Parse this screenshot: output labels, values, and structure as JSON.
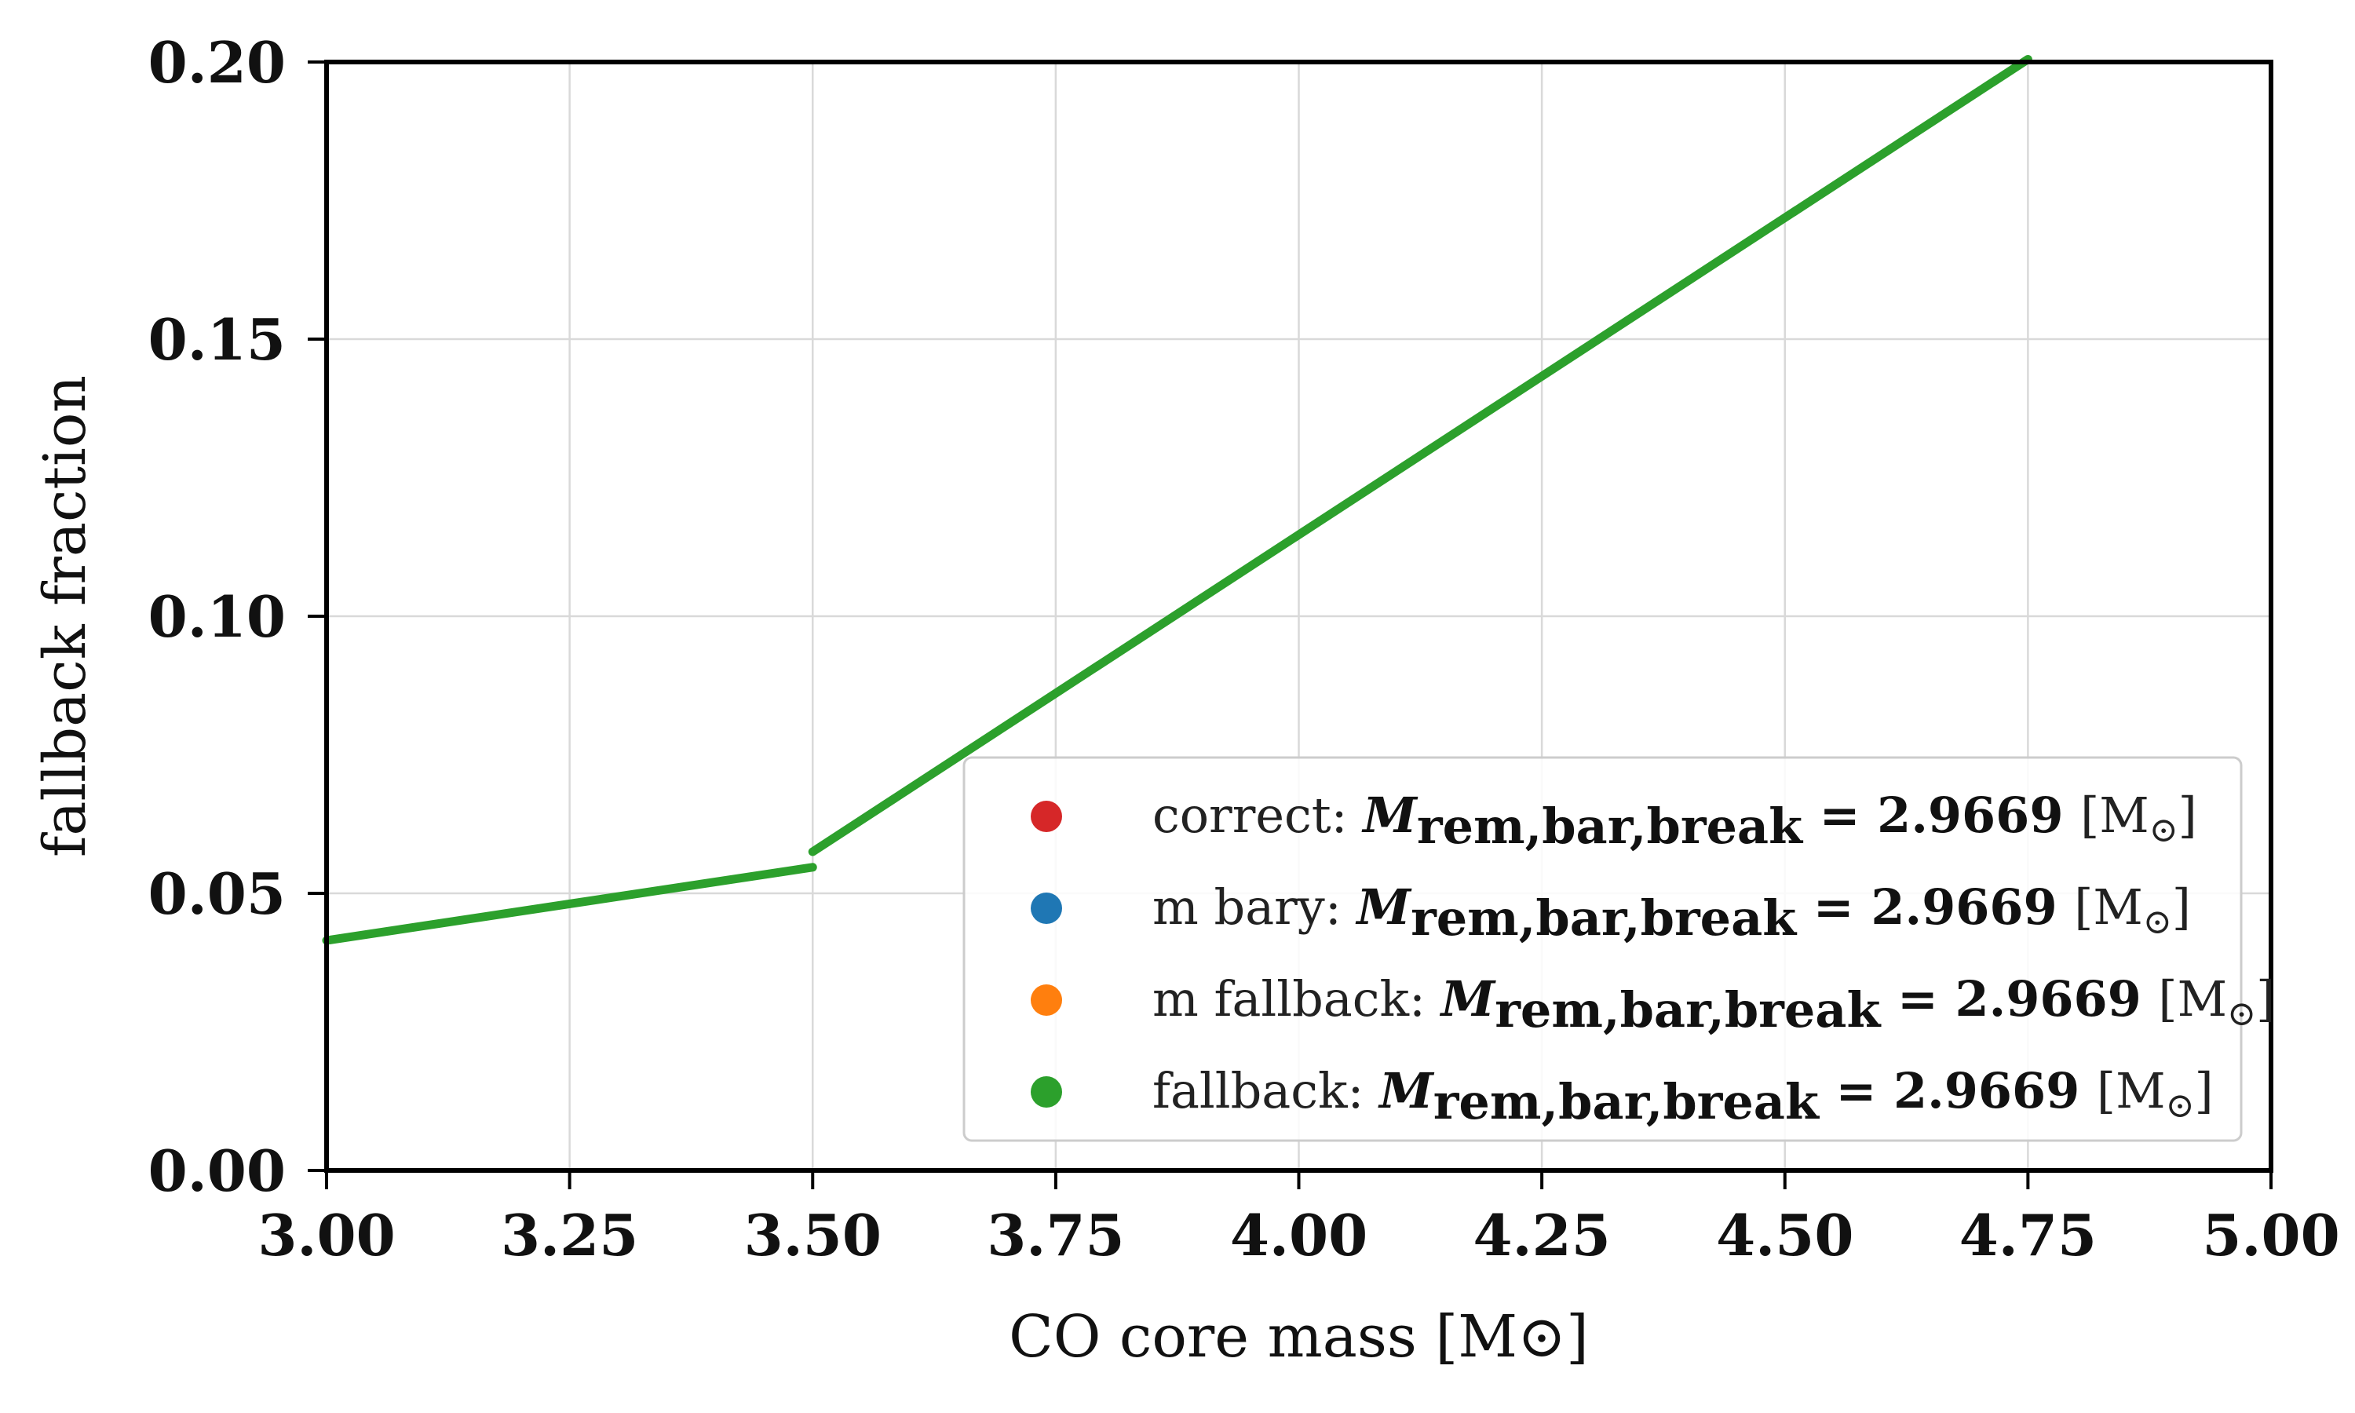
{
  "chart_data": {
    "type": "line",
    "xlabel": "CO core mass [M⊙]",
    "ylabel": "fallback fraction",
    "xlim": [
      3.0,
      5.0
    ],
    "ylim": [
      0.0,
      0.2
    ],
    "x_ticks": [
      "3.00",
      "3.25",
      "3.50",
      "3.75",
      "4.00",
      "4.25",
      "4.50",
      "4.75",
      "5.00"
    ],
    "y_ticks": [
      "0.00",
      "0.05",
      "0.10",
      "0.15",
      "0.20"
    ],
    "grid": true,
    "legend_position": "lower-right",
    "series": [
      {
        "name": "correct",
        "color": "#d62728",
        "label_tail": "M_rem,bar,break = 2.9669 [M⊙]",
        "segments": []
      },
      {
        "name": "m bary",
        "color": "#1f77b4",
        "label_tail": "M_rem,bar,break = 2.9669 [M⊙]",
        "segments": []
      },
      {
        "name": "m fallback",
        "color": "#ff7f0e",
        "label_tail": "M_rem,bar,break = 2.9669 [M⊙]",
        "segments": []
      },
      {
        "name": "fallback",
        "color": "#2ca02c",
        "label_tail": "M_rem,bar,break = 2.9669 [M⊙]",
        "segments": [
          {
            "x": [
              3.0,
              3.5
            ],
            "y": [
              0.0415,
              0.0547
            ]
          },
          {
            "x": [
              3.5,
              4.75
            ],
            "y": [
              0.0575,
              0.2005
            ]
          }
        ]
      }
    ]
  },
  "legend": {
    "math_symbol": "M",
    "math_subscript": "rem,bar,break",
    "equals": "=",
    "value": "2.9669",
    "unit_open": "[M",
    "unit_sun": "⊙",
    "unit_close": "]"
  }
}
